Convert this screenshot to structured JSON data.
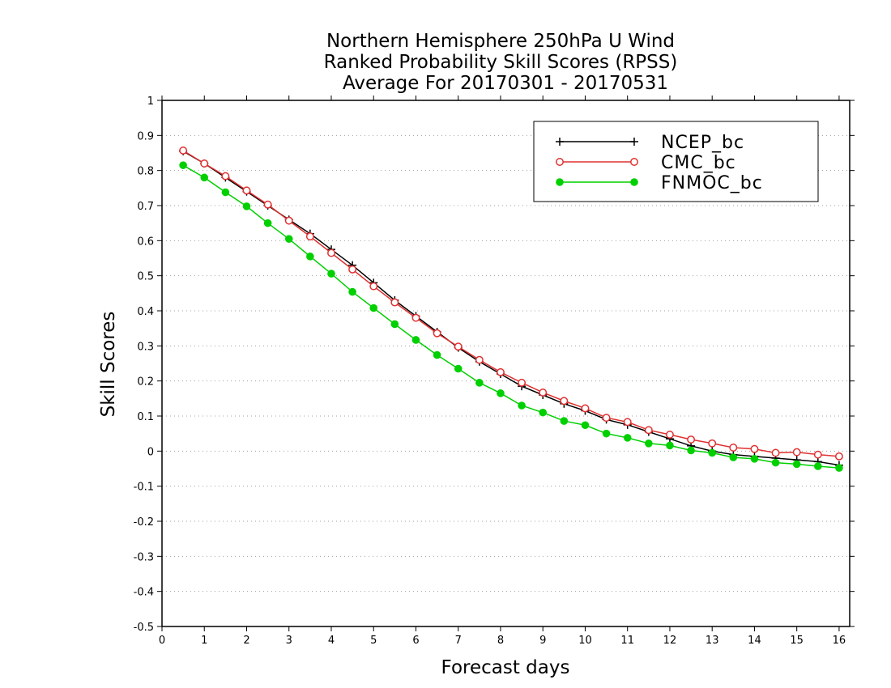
{
  "chart_data": {
    "type": "line",
    "title_lines": [
      "Northern Hemisphere 250hPa U Wind",
      "Ranked Probability Skill Scores (RPSS)",
      "Average For 20170301 - 20170531"
    ],
    "xlabel": "Forecast days",
    "ylabel": "Skill Scores",
    "xlim": [
      0,
      16.25
    ],
    "ylim": [
      -0.5,
      1
    ],
    "x_ticks": [
      0,
      1,
      2,
      3,
      4,
      5,
      6,
      7,
      8,
      9,
      10,
      11,
      12,
      13,
      14,
      15,
      16
    ],
    "y_ticks": [
      -0.5,
      -0.4,
      -0.3,
      -0.2,
      -0.1,
      0,
      0.1,
      0.2,
      0.3,
      0.4,
      0.5,
      0.6,
      0.7,
      0.8,
      0.9,
      1
    ],
    "y_tick_labels": [
      "-0.5",
      "-0.4",
      "-0.3",
      "-0.2",
      "-0.1",
      "0",
      "0.1",
      "0.2",
      "0.3",
      "0.4",
      "0.5",
      "0.6",
      "0.7",
      "0.8",
      "0.9",
      "1"
    ],
    "grid": "horizontal dotted",
    "legend_position": "top-right",
    "x": [
      0.5,
      1,
      1.5,
      2,
      2.5,
      3,
      3.5,
      4,
      4.5,
      5,
      5.5,
      6,
      6.5,
      7,
      7.5,
      8,
      8.5,
      9,
      9.5,
      10,
      10.5,
      11,
      11.5,
      12,
      12.5,
      13,
      13.5,
      14,
      14.5,
      15,
      15.5,
      16
    ],
    "series": [
      {
        "name": "NCEP_bc",
        "color": "#000000",
        "marker": "plus",
        "values": [
          0.855,
          0.82,
          0.78,
          0.74,
          0.7,
          0.66,
          0.62,
          0.575,
          0.53,
          0.48,
          0.43,
          0.385,
          0.34,
          0.295,
          0.255,
          0.22,
          0.185,
          0.16,
          0.135,
          0.115,
          0.09,
          0.075,
          0.055,
          0.035,
          0.015,
          0.0,
          -0.01,
          -0.015,
          -0.02,
          -0.025,
          -0.03,
          -0.04
        ]
      },
      {
        "name": "CMC_bc",
        "color": "#e03030",
        "marker": "open-circle",
        "values": [
          0.857,
          0.82,
          0.784,
          0.743,
          0.703,
          0.657,
          0.612,
          0.565,
          0.518,
          0.47,
          0.424,
          0.38,
          0.336,
          0.298,
          0.26,
          0.225,
          0.195,
          0.167,
          0.143,
          0.122,
          0.095,
          0.083,
          0.06,
          0.047,
          0.033,
          0.022,
          0.01,
          0.006,
          -0.005,
          -0.003,
          -0.01,
          -0.015
        ]
      },
      {
        "name": "FNMOC_bc",
        "color": "#00d000",
        "marker": "filled-circle",
        "values": [
          0.815,
          0.78,
          0.738,
          0.698,
          0.65,
          0.605,
          0.555,
          0.506,
          0.454,
          0.408,
          0.362,
          0.317,
          0.274,
          0.235,
          0.195,
          0.165,
          0.13,
          0.11,
          0.086,
          0.074,
          0.05,
          0.038,
          0.022,
          0.016,
          0.002,
          -0.005,
          -0.018,
          -0.022,
          -0.033,
          -0.037,
          -0.043,
          -0.048
        ]
      }
    ]
  }
}
